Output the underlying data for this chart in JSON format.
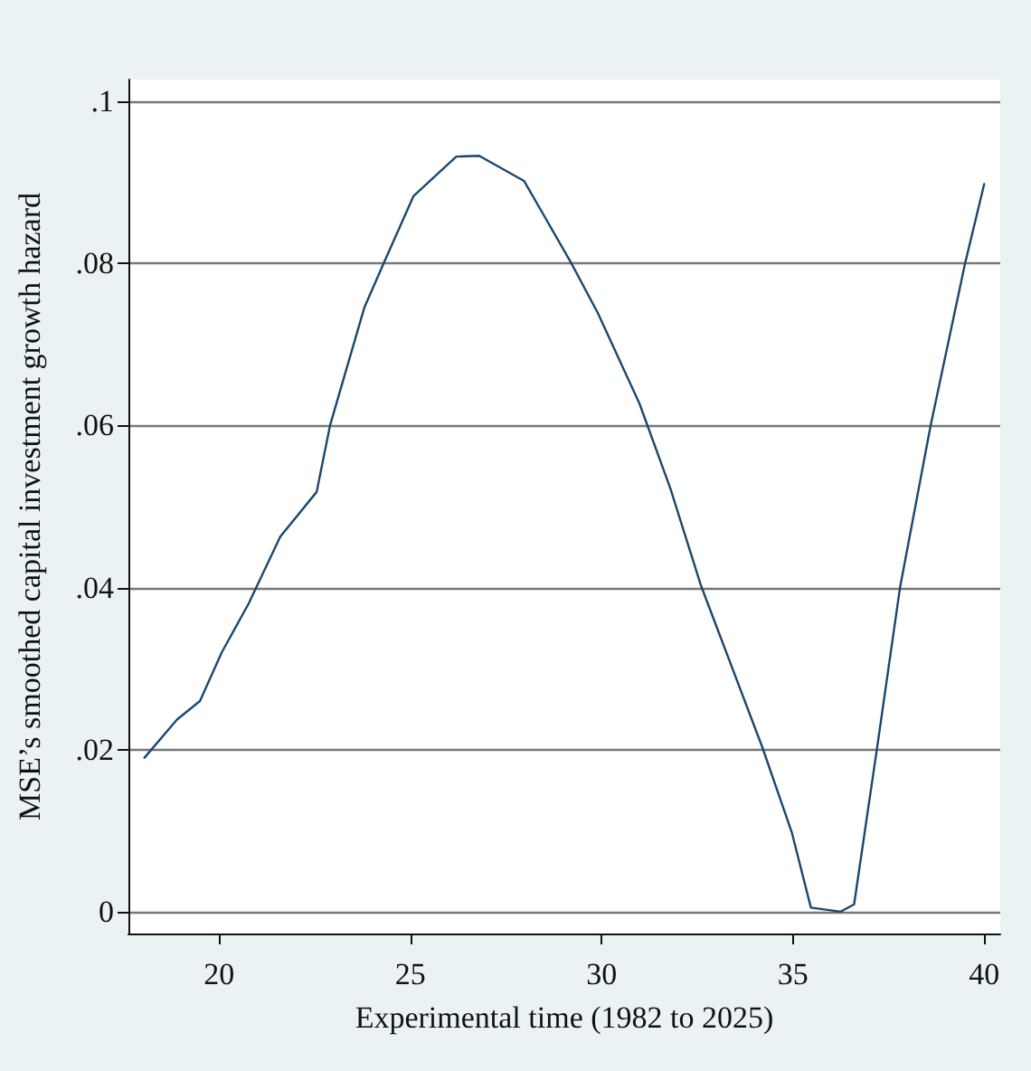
{
  "chart_data": {
    "type": "line",
    "xlabel": "Experimental time (1982 to 2025)",
    "ylabel": "MSE’s smoothed capital investment growth hazard",
    "series": [
      {
        "color": "#1a476f",
        "x": [
          18.05,
          18.9,
          19.5,
          20.07,
          20.77,
          21.6,
          22.55,
          22.9,
          23.8,
          24.3,
          25.08,
          26.2,
          26.8,
          27.97,
          28.52,
          29.2,
          29.9,
          30.99,
          31.8,
          32.6,
          34.2,
          34.97,
          35.47,
          36.25,
          36.6,
          37.2,
          37.8,
          38.6,
          39.5,
          40.0
        ],
        "values": [
          0.019,
          0.0237,
          0.026,
          0.032,
          0.038,
          0.0463,
          0.0518,
          0.06,
          0.0746,
          0.08,
          0.0883,
          0.0932,
          0.0933,
          0.0902,
          0.0857,
          0.0801,
          0.0739,
          0.0627,
          0.0522,
          0.0402,
          0.0203,
          0.0098,
          0.0005,
          0.0,
          0.0009,
          0.0202,
          0.04,
          0.06,
          0.08,
          0.0898
        ]
      }
    ],
    "xlim": [
      17.63,
      40.42
    ],
    "xticks": [
      20,
      25,
      30,
      35,
      40
    ],
    "ylim": [
      -0.0027,
      0.1027
    ],
    "yticks": [
      0,
      {
        "value": 0.02,
        "label": ".02"
      },
      {
        "value": 0.04,
        "label": ".04"
      },
      {
        "value": 0.06,
        "label": ".06"
      },
      {
        "value": 0.08,
        "label": ".08"
      },
      {
        "value": 0.1,
        "label": ".1"
      }
    ],
    "grid": "y",
    "marker": "none",
    "line_style": "solid"
  }
}
